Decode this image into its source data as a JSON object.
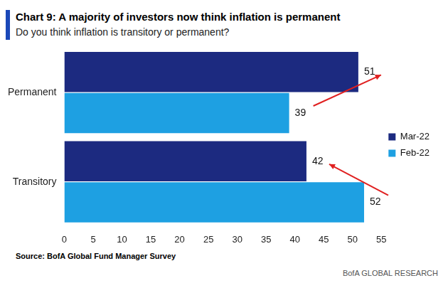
{
  "chart_data": {
    "type": "bar",
    "title": "Chart 9: A majority of investors now think inflation is permanent",
    "subtitle": "Do you think inflation is transitory or permanent?",
    "orientation": "horizontal",
    "categories": [
      "Permanent",
      "Transitory"
    ],
    "series": [
      {
        "name": "Mar-22",
        "color": "#1c2a80",
        "values": [
          51,
          42
        ]
      },
      {
        "name": "Feb-22",
        "color": "#1ea0e2",
        "values": [
          39,
          52
        ]
      }
    ],
    "xlim": [
      0,
      55
    ],
    "xticks": [
      0,
      5,
      10,
      15,
      20,
      25,
      30,
      35,
      40,
      45,
      50,
      55
    ],
    "grid": false,
    "legend": "right",
    "data_labels": true,
    "annotations": [
      "Source: BofA Global Fund Manager Survey",
      "BofA GLOBAL RESEARCH"
    ]
  }
}
